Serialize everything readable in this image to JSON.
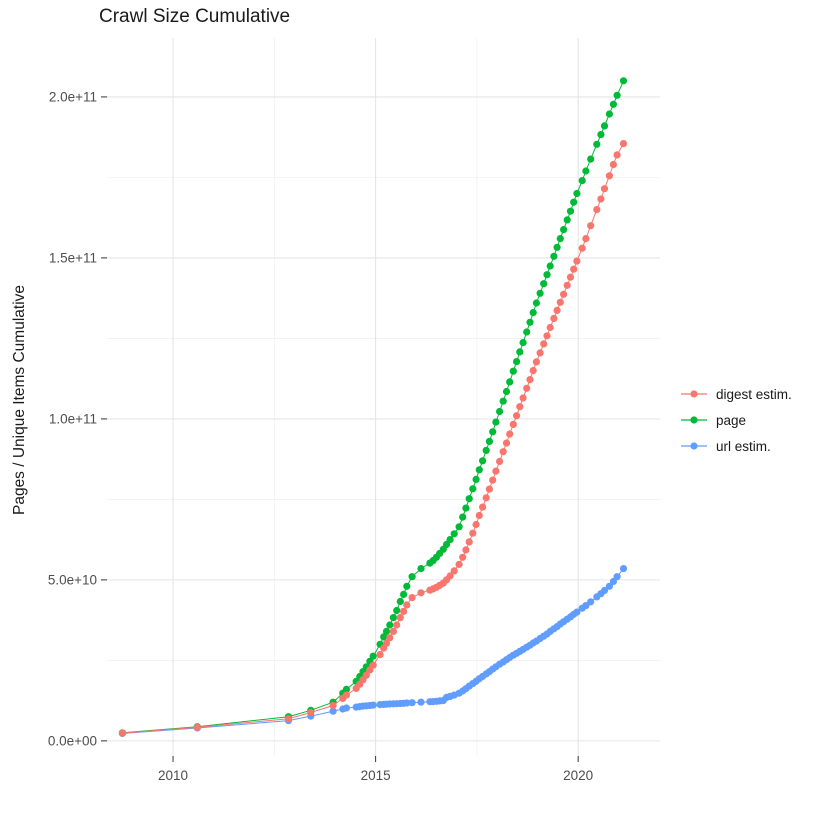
{
  "chart_data": {
    "type": "scatter",
    "title": "Crawl Size Cumulative",
    "ylabel": "Pages / Unique Items Cumulative",
    "xlabel": "",
    "grid": true,
    "legend_position": "right",
    "text_color": "#4d4d4d",
    "grid_major_color": "#e5e5e5",
    "grid_minor_color": "#efefef",
    "tick_color": "#333333",
    "xlim": [
      2008.37,
      2022.02
    ],
    "ylim_e9": [
      -4.7,
      218.3
    ],
    "y_unit_note": "y values in billions (1e9); tick labels shown in scientific notation",
    "x_ticks": [
      {
        "v": 2010,
        "label": "2010"
      },
      {
        "v": 2015,
        "label": "2015"
      },
      {
        "v": 2020,
        "label": "2020"
      }
    ],
    "x_minor": [
      2012.5,
      2017.5
    ],
    "y_ticks": [
      {
        "v": 0,
        "label": "0.0e+00"
      },
      {
        "v": 50,
        "label": "5.0e+10"
      },
      {
        "v": 100,
        "label": "1.0e+11"
      },
      {
        "v": 150,
        "label": "1.5e+11"
      },
      {
        "v": 200,
        "label": "2.0e+11"
      }
    ],
    "y_minor": [
      25,
      75,
      125,
      175
    ],
    "x": [
      2008.75,
      2010.6,
      2012.85,
      2013.4,
      2013.95,
      2014.19,
      2014.28,
      2014.52,
      2014.61,
      2014.69,
      2014.77,
      2014.86,
      2014.94,
      2015.11,
      2015.2,
      2015.27,
      2015.35,
      2015.44,
      2015.52,
      2015.61,
      2015.69,
      2015.77,
      2015.9,
      2016.12,
      2016.34,
      2016.42,
      2016.5,
      2016.58,
      2016.67,
      2016.75,
      2016.84,
      2016.94,
      2017.06,
      2017.15,
      2017.23,
      2017.31,
      2017.4,
      2017.48,
      2017.56,
      2017.64,
      2017.73,
      2017.81,
      2017.89,
      2017.97,
      2018.06,
      2018.15,
      2018.23,
      2018.31,
      2018.4,
      2018.48,
      2018.56,
      2018.64,
      2018.73,
      2018.81,
      2018.89,
      2018.97,
      2019.06,
      2019.15,
      2019.23,
      2019.31,
      2019.4,
      2019.48,
      2019.56,
      2019.64,
      2019.73,
      2019.81,
      2019.89,
      2019.97,
      2020.1,
      2020.19,
      2020.31,
      2020.46,
      2020.56,
      2020.65,
      2020.77,
      2020.87,
      2020.96,
      2021.12
    ],
    "series": [
      {
        "name": "digest estim.",
        "color": "#F8766D",
        "y_e9": [
          2.4,
          4.2,
          6.9,
          8.8,
          11,
          13.2,
          14.2,
          16.3,
          17.6,
          19,
          20.4,
          22,
          23.5,
          26.8,
          28.8,
          30.3,
          32,
          34,
          36,
          38.3,
          40.2,
          42.2,
          44.5,
          46,
          46.8,
          47.2,
          47.7,
          48.3,
          49,
          50,
          51.2,
          52.8,
          54.8,
          57,
          59.3,
          61.8,
          64.5,
          67.2,
          70,
          72.6,
          75.5,
          78.2,
          81,
          83.8,
          86.8,
          89.8,
          92.5,
          95.3,
          98.3,
          101,
          103.8,
          106.5,
          109.5,
          112.2,
          115,
          117.7,
          120.5,
          123.3,
          125.8,
          128.4,
          131.2,
          133.7,
          136.2,
          138.7,
          141.5,
          144,
          146.5,
          149,
          153,
          156,
          160,
          165,
          168.3,
          171.5,
          175.5,
          179,
          182,
          185.5
        ]
      },
      {
        "name": "page",
        "color": "#00BA38",
        "y_e9": [
          2.5,
          4.4,
          7.5,
          9.5,
          12,
          14.8,
          16,
          18.5,
          20,
          21.5,
          23,
          24.7,
          26.3,
          30,
          32.3,
          34,
          36,
          38.3,
          40.5,
          43.3,
          45.5,
          48,
          51,
          53.5,
          55.2,
          56,
          57,
          58.2,
          59.5,
          61,
          62.5,
          64.3,
          66.5,
          69.5,
          72.3,
          75.2,
          78.3,
          81.2,
          84.2,
          87,
          90.2,
          93,
          96,
          99,
          102.3,
          105.5,
          108.5,
          111.5,
          114.8,
          117.8,
          120.8,
          123.7,
          127,
          130,
          133,
          136,
          139,
          142,
          144.8,
          147.5,
          150.5,
          153.3,
          156,
          158.8,
          161.8,
          164.5,
          167.3,
          170,
          174,
          177,
          180.7,
          185.3,
          188.3,
          191,
          194.7,
          197.7,
          200.5,
          205
        ]
      },
      {
        "name": "url estim.",
        "color": "#619CFF",
        "y_e9": [
          2.3,
          4,
          6.3,
          7.7,
          9.2,
          9.9,
          10.2,
          10.5,
          10.65,
          10.8,
          10.9,
          11,
          11.1,
          11.25,
          11.33,
          11.4,
          11.45,
          11.5,
          11.55,
          11.62,
          11.68,
          11.75,
          11.85,
          12,
          12.15,
          12.2,
          12.3,
          12.4,
          12.5,
          13.5,
          13.8,
          14.2,
          14.8,
          15.5,
          16.2,
          17,
          17.8,
          18.5,
          19.3,
          20,
          20.8,
          21.5,
          22.3,
          23,
          23.8,
          24.5,
          25.2,
          25.9,
          26.6,
          27.2,
          27.8,
          28.4,
          29.1,
          29.7,
          30.4,
          31,
          31.8,
          32.5,
          33.2,
          34,
          34.8,
          35.5,
          36.3,
          37,
          37.8,
          38.5,
          39.3,
          40,
          41.2,
          42,
          43.2,
          44.7,
          45.7,
          46.7,
          48,
          49.5,
          51,
          53.5
        ]
      }
    ],
    "draw_order": [
      "url estim.",
      "page",
      "digest estim."
    ]
  }
}
